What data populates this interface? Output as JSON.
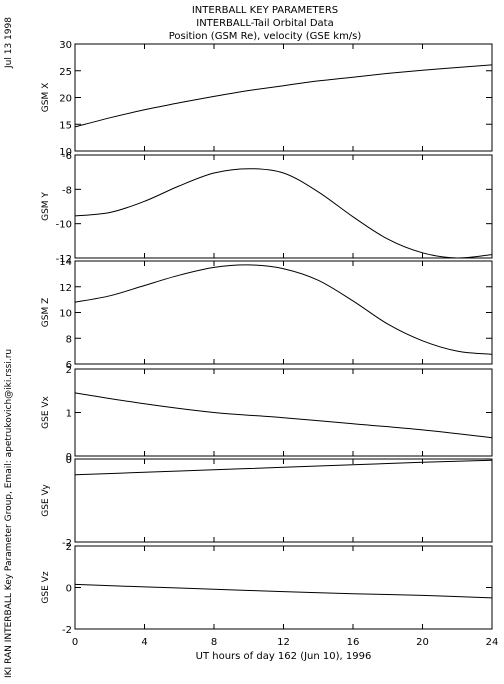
{
  "header": {
    "line1": "INTERBALL KEY PARAMETERS",
    "line2": "INTERBALL-Tail Orbital Data",
    "line3": "Position (GSM Re), velocity (GSE km/s)"
  },
  "side": {
    "date": "Jul 13 1998",
    "credit": "IKI RAN INTERBALL Key Parameter Group, Email: apetrukovich@iki.rssi.ru"
  },
  "chart_data": [
    {
      "type": "line",
      "ylabel": "GSM X",
      "ylim": [
        10,
        30
      ],
      "yticks": [
        "30",
        "25",
        "20",
        "15",
        "10"
      ],
      "x": [
        0,
        2,
        4,
        6,
        8,
        10,
        12,
        14,
        16,
        18,
        20,
        22,
        24
      ],
      "series": [
        {
          "values": [
            14.5,
            16.2,
            17.7,
            19.0,
            20.2,
            21.3,
            22.2,
            23.1,
            23.8,
            24.5,
            25.1,
            25.6,
            26.1
          ]
        }
      ]
    },
    {
      "type": "line",
      "ylabel": "GSM Y",
      "ylim": [
        -12,
        -6
      ],
      "yticks": [
        "-6",
        "-8",
        "-10",
        "-12"
      ],
      "x": [
        0,
        2,
        4,
        6,
        8,
        10,
        12,
        14,
        16,
        18,
        20,
        22,
        24
      ],
      "series": [
        {
          "values": [
            -9.55,
            -9.35,
            -8.7,
            -7.8,
            -7.05,
            -6.8,
            -7.05,
            -8.15,
            -9.6,
            -10.9,
            -11.7,
            -12.0,
            -11.8
          ]
        }
      ]
    },
    {
      "type": "line",
      "ylabel": "GSM Z",
      "ylim": [
        6,
        14
      ],
      "yticks": [
        "14",
        "12",
        "10",
        "8",
        "6"
      ],
      "x": [
        0,
        2,
        4,
        6,
        8,
        10,
        12,
        14,
        16,
        18,
        20,
        22,
        24
      ],
      "series": [
        {
          "values": [
            10.8,
            11.3,
            12.1,
            12.9,
            13.5,
            13.7,
            13.4,
            12.5,
            10.9,
            9.1,
            7.8,
            7.0,
            6.75
          ]
        }
      ]
    },
    {
      "type": "line",
      "ylabel": "GSE Vx",
      "ylim": [
        0,
        2
      ],
      "yticks": [
        "2",
        "1",
        "0"
      ],
      "x": [
        0,
        4,
        8,
        12,
        16,
        20,
        24
      ],
      "series": [
        {
          "values": [
            1.45,
            1.2,
            1.0,
            0.88,
            0.74,
            0.6,
            0.42
          ]
        }
      ]
    },
    {
      "type": "line",
      "ylabel": "GSE Vy",
      "ylim": [
        -2,
        0
      ],
      "yticks": [
        "0",
        "-2"
      ],
      "x": [
        0,
        4,
        8,
        12,
        16,
        20,
        24
      ],
      "series": [
        {
          "values": [
            -0.38,
            -0.32,
            -0.26,
            -0.2,
            -0.14,
            -0.08,
            -0.03
          ]
        }
      ]
    },
    {
      "type": "line",
      "ylabel": "GSE Vz",
      "ylim": [
        -2,
        2
      ],
      "yticks": [
        "2",
        "0",
        "-2"
      ],
      "x": [
        0,
        4,
        8,
        12,
        16,
        20,
        24
      ],
      "series": [
        {
          "values": [
            0.15,
            0.03,
            -0.08,
            -0.2,
            -0.3,
            -0.38,
            -0.5
          ]
        }
      ]
    }
  ],
  "xaxis": {
    "min": 0,
    "max": 24,
    "ticks": [
      "0",
      "4",
      "8",
      "12",
      "16",
      "20",
      "24"
    ],
    "label": "UT hours of day 162 (Jun 10), 1996"
  }
}
